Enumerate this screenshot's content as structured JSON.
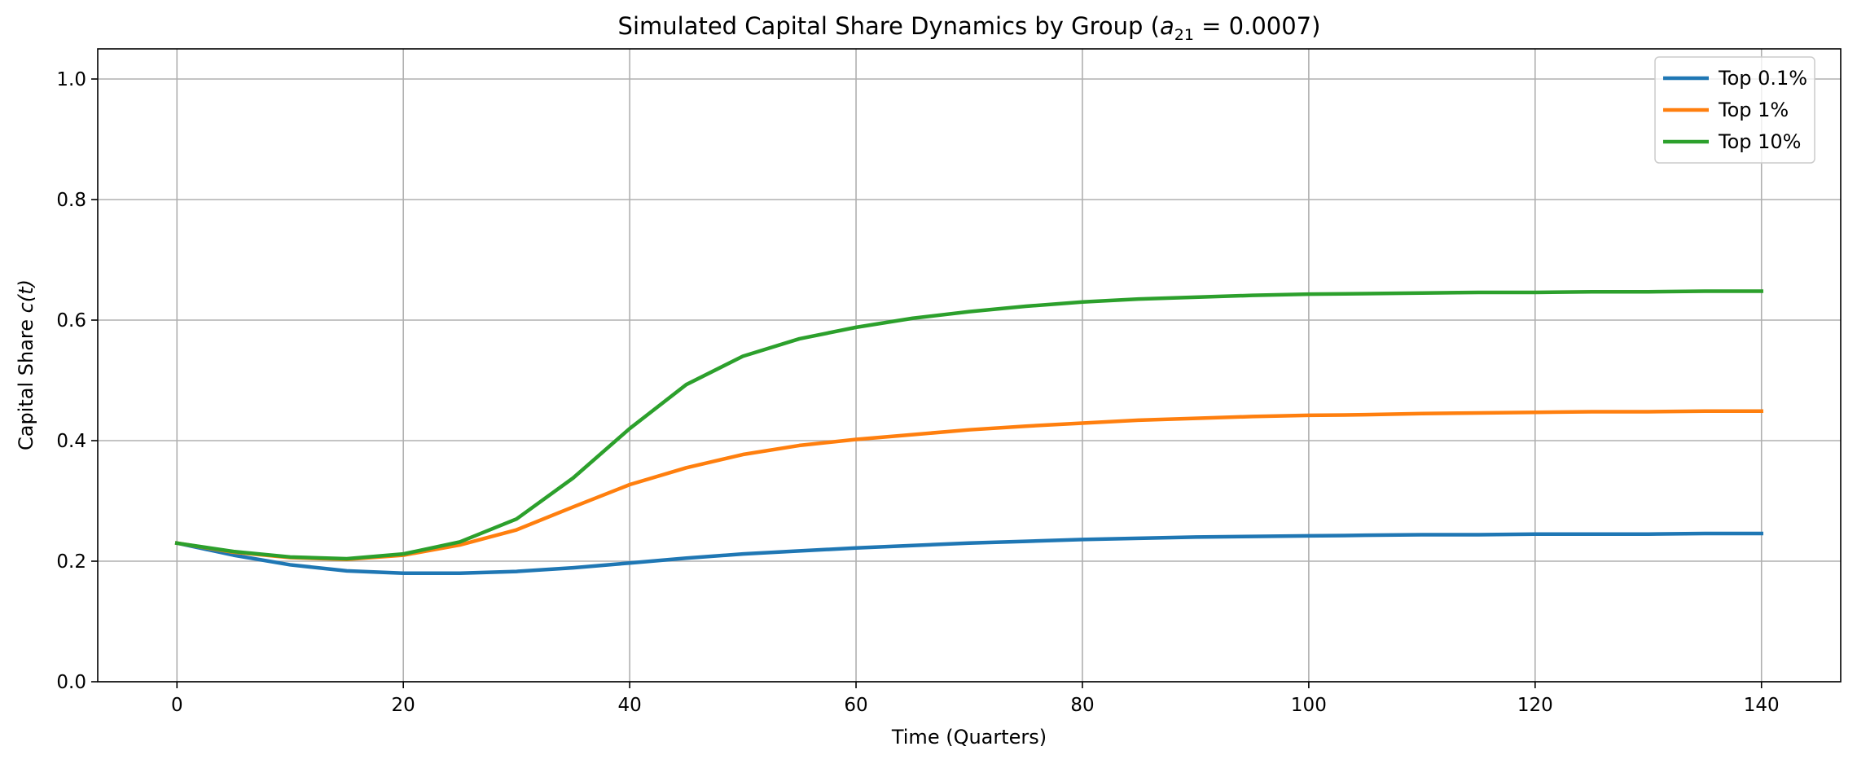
{
  "chart_data": {
    "type": "line",
    "title_main": "Simulated Capital Share Dynamics by Group (",
    "title_symbol": "a",
    "title_subscript": "21",
    "title_value": " = 0.0007)",
    "xlabel": "Time (Quarters)",
    "ylabel_main": "Capital Share ",
    "ylabel_symbol": "c(t)",
    "xlim": [
      -7,
      147
    ],
    "ylim": [
      0,
      1.05
    ],
    "xticks": [
      0,
      20,
      40,
      60,
      80,
      100,
      120,
      140
    ],
    "xtick_labels": [
      "0",
      "20",
      "40",
      "60",
      "80",
      "100",
      "120",
      "140"
    ],
    "yticks": [
      0.0,
      0.2,
      0.4,
      0.6,
      0.8,
      1.0
    ],
    "ytick_labels": [
      "0.0",
      "0.2",
      "0.4",
      "0.6",
      "0.8",
      "1.0"
    ],
    "grid": true,
    "legend_position": "top-right",
    "x": [
      0,
      5,
      10,
      15,
      20,
      25,
      30,
      35,
      40,
      45,
      50,
      55,
      60,
      65,
      70,
      75,
      80,
      85,
      90,
      95,
      100,
      105,
      110,
      115,
      120,
      125,
      130,
      135,
      140
    ],
    "series": [
      {
        "name": "Top 0.1%",
        "color": "#1f77b4",
        "values": [
          0.23,
          0.21,
          0.194,
          0.184,
          0.18,
          0.18,
          0.183,
          0.189,
          0.197,
          0.205,
          0.212,
          0.217,
          0.222,
          0.226,
          0.23,
          0.233,
          0.236,
          0.238,
          0.24,
          0.241,
          0.242,
          0.243,
          0.244,
          0.244,
          0.245,
          0.245,
          0.245,
          0.246,
          0.246
        ]
      },
      {
        "name": "Top 1%",
        "color": "#ff7f0e",
        "values": [
          0.23,
          0.215,
          0.206,
          0.203,
          0.21,
          0.227,
          0.252,
          0.29,
          0.327,
          0.355,
          0.377,
          0.392,
          0.402,
          0.41,
          0.418,
          0.424,
          0.429,
          0.434,
          0.437,
          0.44,
          0.442,
          0.443,
          0.445,
          0.446,
          0.447,
          0.448,
          0.448,
          0.449,
          0.449
        ]
      },
      {
        "name": "Top 10%",
        "color": "#2ca02c",
        "values": [
          0.23,
          0.216,
          0.207,
          0.204,
          0.212,
          0.232,
          0.27,
          0.338,
          0.42,
          0.493,
          0.54,
          0.569,
          0.588,
          0.603,
          0.614,
          0.623,
          0.63,
          0.635,
          0.638,
          0.641,
          0.643,
          0.644,
          0.645,
          0.646,
          0.646,
          0.647,
          0.647,
          0.648,
          0.648
        ]
      }
    ]
  }
}
